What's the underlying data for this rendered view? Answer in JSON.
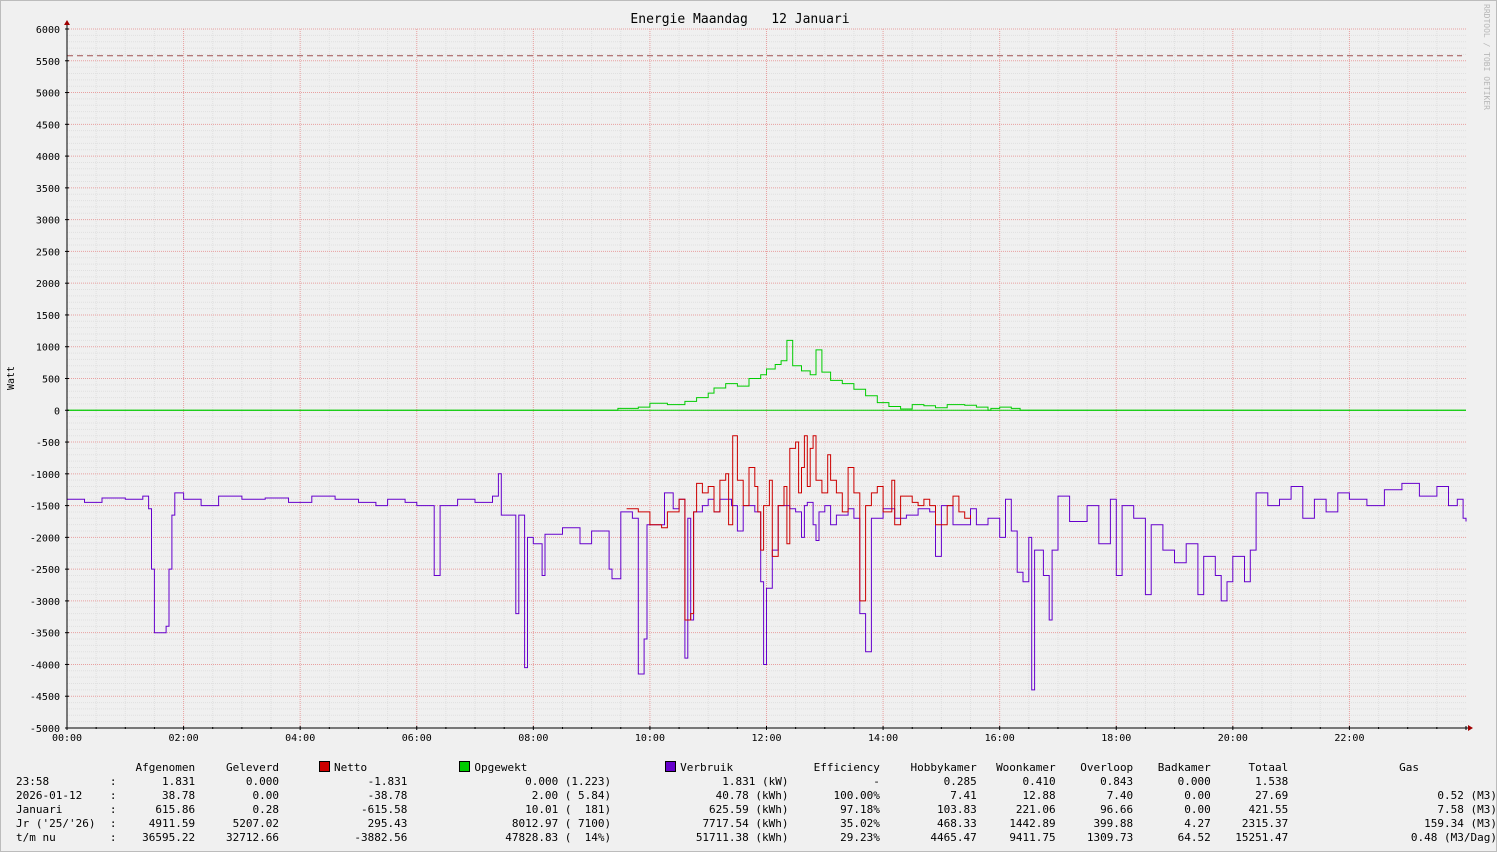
{
  "chart_data": {
    "type": "line",
    "title": "Energie Maandag   12 Januari",
    "ylabel": "Watt",
    "watermark": "RRDTOOL / TOBI OETIKER",
    "ylim": [
      -5000,
      6000
    ],
    "xlim": [
      0,
      24
    ],
    "y_ticks": [
      6000,
      5500,
      5000,
      4500,
      4000,
      3500,
      3000,
      2500,
      2000,
      1500,
      1000,
      500,
      0,
      -500,
      -1000,
      -1500,
      -2000,
      -2500,
      -3000,
      -3500,
      -4000,
      -4500,
      -5000
    ],
    "x_ticks": [
      "00:00",
      "02:00",
      "04:00",
      "06:00",
      "08:00",
      "10:00",
      "12:00",
      "14:00",
      "16:00",
      "18:00",
      "20:00",
      "22:00"
    ],
    "reference_line": 5580,
    "colors": {
      "netto": "#cc0000",
      "opgewekt": "#00cc00",
      "verbruik": "#6600cc",
      "grid": "#e8a0a0",
      "axis": "#000000",
      "ref": "#a05050"
    },
    "series": [
      {
        "name": "Opgewekt",
        "color": "#00cc00",
        "points": [
          [
            0,
            0
          ],
          [
            9.4,
            0
          ],
          [
            9.45,
            30
          ],
          [
            9.8,
            50
          ],
          [
            10.0,
            110
          ],
          [
            10.3,
            90
          ],
          [
            10.6,
            140
          ],
          [
            10.8,
            200
          ],
          [
            11.0,
            270
          ],
          [
            11.1,
            350
          ],
          [
            11.3,
            420
          ],
          [
            11.5,
            380
          ],
          [
            11.7,
            500
          ],
          [
            11.9,
            560
          ],
          [
            12.0,
            650
          ],
          [
            12.15,
            720
          ],
          [
            12.25,
            780
          ],
          [
            12.35,
            1100
          ],
          [
            12.45,
            700
          ],
          [
            12.6,
            620
          ],
          [
            12.75,
            560
          ],
          [
            12.85,
            950
          ],
          [
            12.95,
            600
          ],
          [
            13.1,
            470
          ],
          [
            13.3,
            420
          ],
          [
            13.5,
            330
          ],
          [
            13.7,
            230
          ],
          [
            13.9,
            120
          ],
          [
            14.1,
            60
          ],
          [
            14.3,
            20
          ],
          [
            14.5,
            90
          ],
          [
            14.7,
            70
          ],
          [
            14.9,
            40
          ],
          [
            15.1,
            90
          ],
          [
            15.4,
            80
          ],
          [
            15.6,
            50
          ],
          [
            15.8,
            0
          ],
          [
            15.85,
            30
          ],
          [
            16.0,
            50
          ],
          [
            16.2,
            30
          ],
          [
            16.35,
            0
          ],
          [
            24,
            0
          ]
        ]
      },
      {
        "name": "Netto",
        "color": "#cc0000",
        "points": [
          [
            9.6,
            -1550
          ],
          [
            9.8,
            -1600
          ],
          [
            10.0,
            -1800
          ],
          [
            10.2,
            -1850
          ],
          [
            10.3,
            -1600
          ],
          [
            10.5,
            -1400
          ],
          [
            10.6,
            -3300
          ],
          [
            10.7,
            -3200
          ],
          [
            10.75,
            -1600
          ],
          [
            10.8,
            -1150
          ],
          [
            10.9,
            -1300
          ],
          [
            11.0,
            -1200
          ],
          [
            11.1,
            -1600
          ],
          [
            11.2,
            -1100
          ],
          [
            11.3,
            -1000
          ],
          [
            11.35,
            -1800
          ],
          [
            11.42,
            -400
          ],
          [
            11.5,
            -1100
          ],
          [
            11.6,
            -1500
          ],
          [
            11.7,
            -900
          ],
          [
            11.8,
            -1200
          ],
          [
            11.85,
            -1600
          ],
          [
            11.9,
            -2200
          ],
          [
            11.95,
            -1500
          ],
          [
            12.05,
            -1100
          ],
          [
            12.1,
            -2300
          ],
          [
            12.2,
            -1500
          ],
          [
            12.3,
            -1200
          ],
          [
            12.35,
            -2100
          ],
          [
            12.4,
            -600
          ],
          [
            12.5,
            -500
          ],
          [
            12.55,
            -1300
          ],
          [
            12.6,
            -900
          ],
          [
            12.65,
            -400
          ],
          [
            12.7,
            -1200
          ],
          [
            12.75,
            -600
          ],
          [
            12.8,
            -400
          ],
          [
            12.85,
            -1100
          ],
          [
            12.95,
            -1300
          ],
          [
            13.05,
            -700
          ],
          [
            13.1,
            -1100
          ],
          [
            13.2,
            -1300
          ],
          [
            13.3,
            -1600
          ],
          [
            13.4,
            -900
          ],
          [
            13.5,
            -1300
          ],
          [
            13.6,
            -3000
          ],
          [
            13.7,
            -1500
          ],
          [
            13.8,
            -1300
          ],
          [
            13.9,
            -1200
          ],
          [
            14.0,
            -1600
          ],
          [
            14.15,
            -1100
          ],
          [
            14.2,
            -1800
          ],
          [
            14.3,
            -1350
          ],
          [
            14.5,
            -1450
          ],
          [
            14.6,
            -1500
          ],
          [
            14.7,
            -1400
          ],
          [
            14.8,
            -1500
          ],
          [
            14.9,
            -1800
          ],
          [
            15.1,
            -1500
          ],
          [
            15.2,
            -1350
          ],
          [
            15.3,
            -1600
          ],
          [
            15.4,
            -1700
          ],
          [
            15.5,
            -1650
          ]
        ]
      },
      {
        "name": "Verbruik",
        "color": "#6600cc",
        "points": [
          [
            0,
            -1400
          ],
          [
            0.3,
            -1450
          ],
          [
            0.6,
            -1380
          ],
          [
            1.0,
            -1400
          ],
          [
            1.3,
            -1350
          ],
          [
            1.4,
            -1550
          ],
          [
            1.45,
            -2500
          ],
          [
            1.5,
            -3500
          ],
          [
            1.7,
            -3400
          ],
          [
            1.75,
            -2500
          ],
          [
            1.8,
            -1650
          ],
          [
            1.85,
            -1300
          ],
          [
            2.0,
            -1400
          ],
          [
            2.3,
            -1500
          ],
          [
            2.6,
            -1350
          ],
          [
            3.0,
            -1400
          ],
          [
            3.4,
            -1380
          ],
          [
            3.8,
            -1450
          ],
          [
            4.2,
            -1350
          ],
          [
            4.6,
            -1400
          ],
          [
            5.0,
            -1450
          ],
          [
            5.3,
            -1500
          ],
          [
            5.5,
            -1400
          ],
          [
            5.8,
            -1450
          ],
          [
            6.0,
            -1500
          ],
          [
            6.3,
            -2600
          ],
          [
            6.4,
            -1500
          ],
          [
            6.7,
            -1400
          ],
          [
            7.0,
            -1450
          ],
          [
            7.3,
            -1350
          ],
          [
            7.4,
            -1000
          ],
          [
            7.45,
            -1650
          ],
          [
            7.7,
            -3200
          ],
          [
            7.75,
            -1650
          ],
          [
            7.85,
            -4050
          ],
          [
            7.9,
            -2000
          ],
          [
            8.0,
            -2100
          ],
          [
            8.15,
            -2600
          ],
          [
            8.2,
            -1950
          ],
          [
            8.5,
            -1850
          ],
          [
            8.8,
            -2100
          ],
          [
            9.0,
            -1900
          ],
          [
            9.3,
            -2500
          ],
          [
            9.35,
            -2650
          ],
          [
            9.5,
            -1600
          ],
          [
            9.7,
            -1700
          ],
          [
            9.8,
            -4150
          ],
          [
            9.9,
            -3600
          ],
          [
            9.95,
            -1800
          ],
          [
            10.2,
            -1800
          ],
          [
            10.25,
            -1300
          ],
          [
            10.4,
            -1550
          ],
          [
            10.5,
            -1400
          ],
          [
            10.6,
            -3900
          ],
          [
            10.65,
            -1700
          ],
          [
            10.7,
            -3300
          ],
          [
            10.75,
            -1600
          ],
          [
            10.9,
            -1500
          ],
          [
            11.0,
            -1400
          ],
          [
            11.1,
            -1600
          ],
          [
            11.2,
            -1400
          ],
          [
            11.4,
            -1500
          ],
          [
            11.5,
            -1900
          ],
          [
            11.6,
            -1500
          ],
          [
            11.8,
            -1600
          ],
          [
            11.9,
            -2700
          ],
          [
            11.95,
            -4000
          ],
          [
            12.0,
            -2800
          ],
          [
            12.1,
            -2200
          ],
          [
            12.2,
            -1500
          ],
          [
            12.4,
            -1550
          ],
          [
            12.5,
            -1600
          ],
          [
            12.6,
            -2000
          ],
          [
            12.65,
            -1500
          ],
          [
            12.7,
            -1450
          ],
          [
            12.8,
            -1800
          ],
          [
            12.85,
            -2050
          ],
          [
            12.9,
            -1600
          ],
          [
            13.0,
            -1500
          ],
          [
            13.1,
            -1800
          ],
          [
            13.2,
            -1650
          ],
          [
            13.4,
            -1550
          ],
          [
            13.5,
            -1700
          ],
          [
            13.6,
            -3200
          ],
          [
            13.7,
            -3800
          ],
          [
            13.8,
            -1700
          ],
          [
            14.0,
            -1550
          ],
          [
            14.2,
            -1700
          ],
          [
            14.4,
            -1650
          ],
          [
            14.6,
            -1550
          ],
          [
            14.8,
            -1600
          ],
          [
            14.9,
            -2300
          ],
          [
            15.0,
            -1500
          ],
          [
            15.2,
            -1800
          ],
          [
            15.5,
            -1550
          ],
          [
            15.6,
            -1800
          ],
          [
            15.8,
            -1700
          ],
          [
            16.0,
            -2000
          ],
          [
            16.1,
            -1400
          ],
          [
            16.2,
            -1900
          ],
          [
            16.3,
            -2550
          ],
          [
            16.4,
            -2700
          ],
          [
            16.5,
            -2000
          ],
          [
            16.55,
            -4400
          ],
          [
            16.6,
            -2200
          ],
          [
            16.75,
            -2600
          ],
          [
            16.85,
            -3300
          ],
          [
            16.9,
            -2200
          ],
          [
            17.0,
            -1350
          ],
          [
            17.2,
            -1750
          ],
          [
            17.5,
            -1500
          ],
          [
            17.7,
            -2100
          ],
          [
            17.9,
            -1400
          ],
          [
            18.0,
            -2600
          ],
          [
            18.1,
            -1500
          ],
          [
            18.3,
            -1700
          ],
          [
            18.5,
            -2900
          ],
          [
            18.6,
            -1800
          ],
          [
            18.8,
            -2200
          ],
          [
            19.0,
            -2400
          ],
          [
            19.2,
            -2100
          ],
          [
            19.4,
            -2900
          ],
          [
            19.5,
            -2300
          ],
          [
            19.7,
            -2600
          ],
          [
            19.8,
            -3000
          ],
          [
            19.9,
            -2700
          ],
          [
            20.0,
            -2300
          ],
          [
            20.2,
            -2700
          ],
          [
            20.3,
            -2200
          ],
          [
            20.4,
            -1300
          ],
          [
            20.6,
            -1500
          ],
          [
            20.8,
            -1400
          ],
          [
            21.0,
            -1200
          ],
          [
            21.2,
            -1700
          ],
          [
            21.4,
            -1400
          ],
          [
            21.6,
            -1600
          ],
          [
            21.8,
            -1300
          ],
          [
            22.0,
            -1400
          ],
          [
            22.3,
            -1500
          ],
          [
            22.6,
            -1250
          ],
          [
            22.9,
            -1150
          ],
          [
            23.2,
            -1350
          ],
          [
            23.5,
            -1200
          ],
          [
            23.7,
            -1500
          ],
          [
            23.85,
            -1400
          ],
          [
            23.95,
            -1700
          ],
          [
            24,
            -1750
          ]
        ]
      }
    ]
  },
  "legend": {
    "headers": [
      "",
      "",
      "Afgenomen",
      "Geleverd",
      "Netto",
      "Opgewekt",
      "Verbruik",
      "Efficiency",
      "Hobbykamer",
      "Woonkamer",
      "Overloop",
      "Badkamer",
      "Totaal",
      "Gas"
    ],
    "rows": [
      [
        "23:58",
        ":",
        "1.831",
        "0.000",
        "-1.831",
        "0.000 (1.223)",
        "1.831 (kW)",
        "-",
        "0.285",
        "0.410",
        "0.843",
        "0.000",
        "1.538",
        ""
      ],
      [
        "2026-01-12",
        ":",
        "38.78",
        "0.00",
        "-38.78",
        "2.00 ( 5.84)",
        "40.78 (kWh)",
        "100.00%",
        "7.41",
        "12.88",
        "7.40",
        "0.00",
        "27.69",
        "0.52 (M3)"
      ],
      [
        "Januari",
        ":",
        "615.86",
        "0.28",
        "-615.58",
        "10.01 (  181)",
        "625.59 (kWh)",
        "97.18%",
        "103.83",
        "221.06",
        "96.66",
        "0.00",
        "421.55",
        "7.58 (M3)"
      ],
      [
        "Jr ('25/'26)",
        ":",
        "4911.59",
        "5207.02",
        "295.43",
        "8012.97 ( 7100)",
        "7717.54 (kWh)",
        "35.02%",
        "468.33",
        "1442.89",
        "399.88",
        "4.27",
        "2315.37",
        "159.34 (M3)"
      ],
      [
        "t/m nu",
        ":",
        "36595.22",
        "32712.66",
        "-3882.56",
        "47828.83 (  14%)",
        "51711.38 (kWh)",
        "29.23%",
        "4465.47",
        "9411.75",
        "1309.73",
        "64.52",
        "15251.47",
        "0.48 (M3/Dag)"
      ]
    ]
  }
}
